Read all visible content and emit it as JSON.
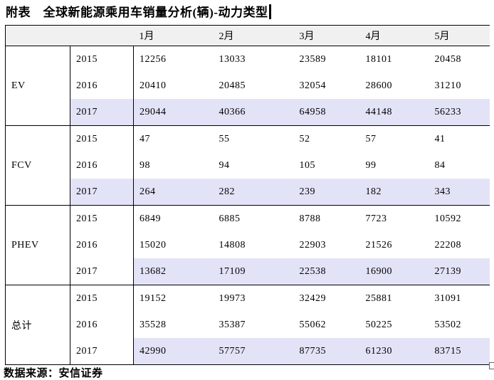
{
  "page": {
    "title": "附表　全球新能源乘用车销量分析(辆)-动力类型",
    "source_note": "数据来源：安信证券"
  },
  "colors": {
    "highlight_row": "#e3e3f7",
    "header_bg": "#f0f0f0",
    "border": "#000000"
  },
  "chart_data": {
    "type": "table",
    "title": "附表　全球新能源乘用车销量分析(辆)-动力类型",
    "column_headers": [
      "1月",
      "2月",
      "3月",
      "4月",
      "5月"
    ],
    "row_groups": [
      {
        "category": "EV",
        "rows": [
          {
            "year": "2015",
            "values": [
              12256,
              13033,
              23589,
              18101,
              20458
            ],
            "highlighted": false,
            "year_highlighted": false
          },
          {
            "year": "2016",
            "values": [
              20410,
              20485,
              32054,
              28600,
              31210
            ],
            "highlighted": false,
            "year_highlighted": false
          },
          {
            "year": "2017",
            "values": [
              29044,
              40366,
              64958,
              44148,
              56233
            ],
            "highlighted": true,
            "year_highlighted": true
          }
        ]
      },
      {
        "category": "FCV",
        "rows": [
          {
            "year": "2015",
            "values": [
              47,
              55,
              52,
              57,
              41
            ],
            "highlighted": false,
            "year_highlighted": false
          },
          {
            "year": "2016",
            "values": [
              98,
              94,
              105,
              99,
              84
            ],
            "highlighted": false,
            "year_highlighted": false
          },
          {
            "year": "2017",
            "values": [
              264,
              282,
              239,
              182,
              343
            ],
            "highlighted": true,
            "year_highlighted": true
          }
        ]
      },
      {
        "category": "PHEV",
        "rows": [
          {
            "year": "2015",
            "values": [
              6849,
              6885,
              8788,
              7723,
              10592
            ],
            "highlighted": false,
            "year_highlighted": false
          },
          {
            "year": "2016",
            "values": [
              15020,
              14808,
              22903,
              21526,
              22208
            ],
            "highlighted": false,
            "year_highlighted": false
          },
          {
            "year": "2017",
            "values": [
              13682,
              17109,
              22538,
              16900,
              27139
            ],
            "highlighted": true,
            "year_highlighted": false
          }
        ]
      },
      {
        "category": "总计",
        "rows": [
          {
            "year": "2015",
            "values": [
              19152,
              19973,
              32429,
              25881,
              31091
            ],
            "highlighted": false,
            "year_highlighted": false
          },
          {
            "year": "2016",
            "values": [
              35528,
              35387,
              55062,
              50225,
              53502
            ],
            "highlighted": false,
            "year_highlighted": false
          },
          {
            "year": "2017",
            "values": [
              42990,
              57757,
              87735,
              61230,
              83715
            ],
            "highlighted": true,
            "year_highlighted": false
          }
        ]
      }
    ]
  }
}
